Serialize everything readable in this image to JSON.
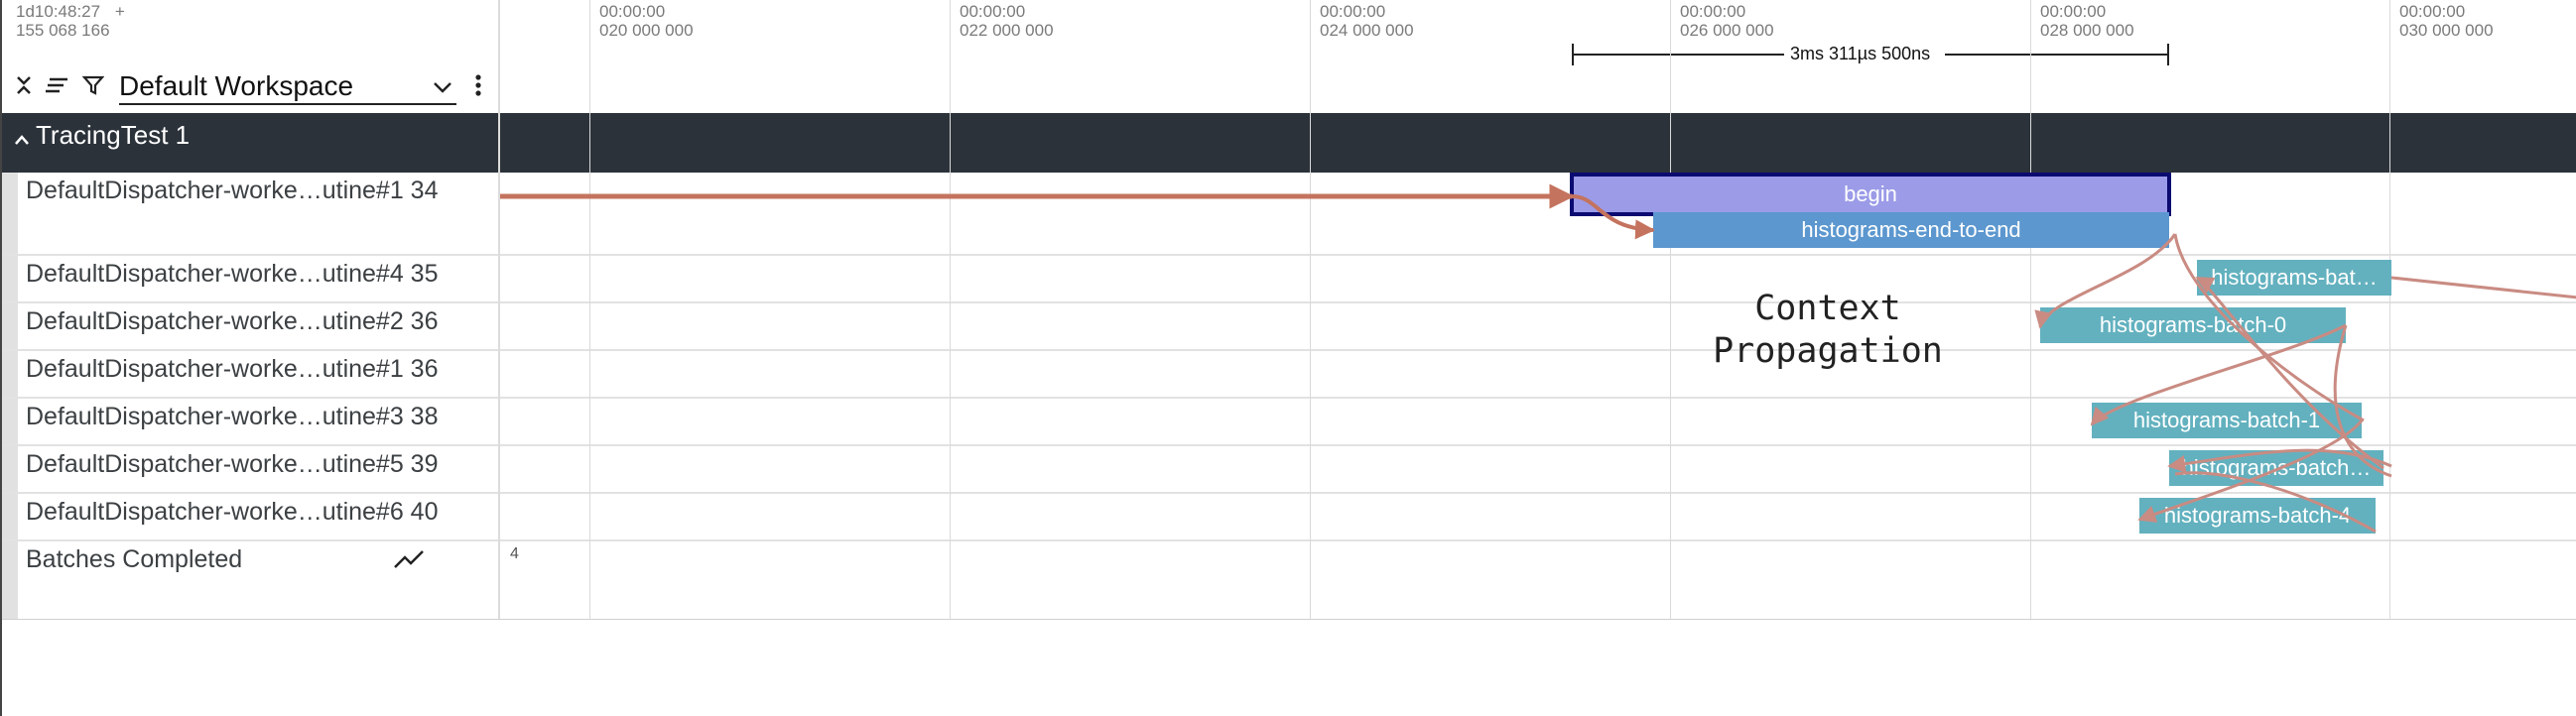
{
  "corner": {
    "time": "1d10:48:27",
    "plus": "+",
    "ns": "155 068 166"
  },
  "toolbar": {
    "workspace": "Default Workspace"
  },
  "ticks": [
    {
      "time": "00:00:00",
      "value": "020 000 000"
    },
    {
      "time": "00:00:00",
      "value": "022 000 000"
    },
    {
      "time": "00:00:00",
      "value": "024 000 000"
    },
    {
      "time": "00:00:00",
      "value": "026 000 000"
    },
    {
      "time": "00:00:00",
      "value": "028 000 000"
    },
    {
      "time": "00:00:00",
      "value": "030 000 000"
    }
  ],
  "span_marker": {
    "label": "3ms 311µs 500ns"
  },
  "group": {
    "title": "TracingTest 1"
  },
  "rows": [
    {
      "label": "DefaultDispatcher-worke…utine#1 34"
    },
    {
      "label": "DefaultDispatcher-worke…utine#4 35"
    },
    {
      "label": "DefaultDispatcher-worke…utine#2 36"
    },
    {
      "label": "DefaultDispatcher-worke…utine#1 36"
    },
    {
      "label": "DefaultDispatcher-worke…utine#3 38"
    },
    {
      "label": "DefaultDispatcher-worke…utine#5 39"
    },
    {
      "label": "DefaultDispatcher-worke…utine#6 40"
    },
    {
      "label": "Batches Completed"
    }
  ],
  "slices": {
    "begin": "begin",
    "end_to_end": "histograms-end-to-end",
    "batch_top": "histograms-bat…",
    "batch0": "histograms-batch-0",
    "batch1": "histograms-batch-1",
    "batch_mid": "histograms-batch…",
    "batch4": "histograms-batch-4"
  },
  "annotation": {
    "line1": "Context",
    "line2": "Propagation"
  },
  "counter": {
    "value": "4"
  },
  "colors": {
    "begin_border": "#0b0b72",
    "begin_fill": "#9b9be8",
    "teal": "#63b1bf",
    "blue": "#5c97cf",
    "flow": "#c98b82",
    "flow_main": "#c4735e"
  }
}
